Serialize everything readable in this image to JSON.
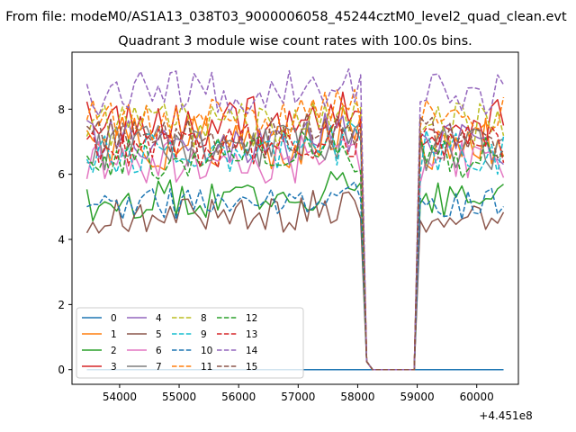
{
  "figure": {
    "suptitle": "From file: modeM0/AS1A13_038T03_9000006058_45244cztM0_level2_quad_clean.evt",
    "offset_label": "+4.451e8"
  },
  "chart_data": {
    "type": "line",
    "title": "Quadrant 3 module wise count rates with 100.0s bins.",
    "xlabel": "",
    "ylabel": "",
    "x_offset": 445100000,
    "xlim": [
      53200,
      60700
    ],
    "ylim": [
      -0.45,
      9.75
    ],
    "x_ticks": [
      54000,
      55000,
      56000,
      57000,
      58000,
      59000,
      60000
    ],
    "y_ticks": [
      0,
      2,
      4,
      6,
      8
    ],
    "grid": false,
    "legend_position": "lower-left",
    "legend_columns": 5,
    "x_start": 53450,
    "bin": 100,
    "gap_start": 58150,
    "gap_end": 58950,
    "x_end": 60450,
    "series": [
      {
        "name": "0",
        "color": "#1f77b4",
        "dash": "solid",
        "active": 0,
        "mean": 0,
        "var": 0,
        "seed": 1
      },
      {
        "name": "1",
        "color": "#ff7f0e",
        "dash": "solid",
        "active": 1,
        "mean": 6.9,
        "var": 0.45,
        "seed": 2
      },
      {
        "name": "2",
        "color": "#2ca02c",
        "dash": "solid",
        "active": 1,
        "mean": 5.25,
        "var": 0.3,
        "seed": 3
      },
      {
        "name": "3",
        "color": "#d62728",
        "dash": "solid",
        "active": 1,
        "mean": 7.6,
        "var": 0.4,
        "seed": 4
      },
      {
        "name": "4",
        "color": "#9467bd",
        "dash": "solid",
        "active": 1,
        "mean": 7.0,
        "var": 0.35,
        "seed": 5
      },
      {
        "name": "5",
        "color": "#8c564b",
        "dash": "solid",
        "active": 1,
        "mean": 4.75,
        "var": 0.3,
        "seed": 6
      },
      {
        "name": "6",
        "color": "#e377c2",
        "dash": "solid",
        "active": 1,
        "mean": 6.4,
        "var": 0.35,
        "seed": 7
      },
      {
        "name": "7",
        "color": "#7f7f7f",
        "dash": "solid",
        "active": 1,
        "mean": 6.8,
        "var": 0.35,
        "seed": 8
      },
      {
        "name": "8",
        "color": "#bcbd22",
        "dash": "dash",
        "active": 1,
        "mean": 7.5,
        "var": 0.35,
        "seed": 9
      },
      {
        "name": "9",
        "color": "#17becf",
        "dash": "dash",
        "active": 1,
        "mean": 6.7,
        "var": 0.35,
        "seed": 10
      },
      {
        "name": "10",
        "color": "#1f77b4",
        "dash": "dash",
        "active": 1,
        "mean": 5.1,
        "var": 0.25,
        "seed": 11
      },
      {
        "name": "11",
        "color": "#ff7f0e",
        "dash": "dash",
        "active": 1,
        "mean": 7.7,
        "var": 0.35,
        "seed": 12
      },
      {
        "name": "12",
        "color": "#2ca02c",
        "dash": "dash",
        "active": 1,
        "mean": 6.5,
        "var": 0.35,
        "seed": 13
      },
      {
        "name": "13",
        "color": "#d62728",
        "dash": "dash",
        "active": 1,
        "mean": 6.9,
        "var": 0.35,
        "seed": 14
      },
      {
        "name": "14",
        "color": "#9467bd",
        "dash": "dash",
        "active": 1,
        "mean": 8.5,
        "var": 0.35,
        "seed": 15
      },
      {
        "name": "15",
        "color": "#8c564b",
        "dash": "dash",
        "active": 1,
        "mean": 7.1,
        "var": 0.35,
        "seed": 16
      }
    ]
  }
}
